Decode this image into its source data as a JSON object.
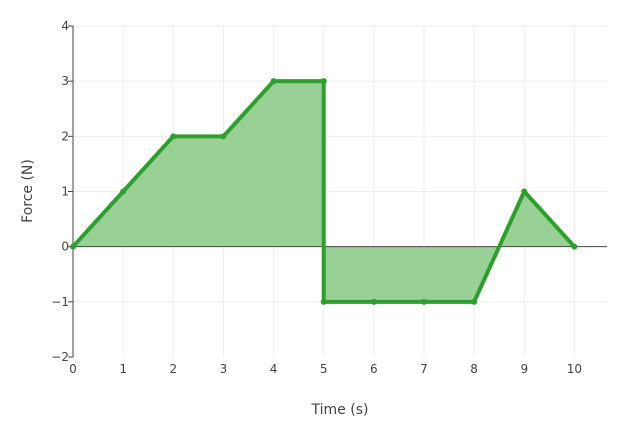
{
  "chart_data": {
    "type": "area",
    "title": "",
    "xlabel": "Time (s)",
    "ylabel": "Force (N)",
    "xlim": [
      0,
      10.65
    ],
    "ylim": [
      -2,
      4
    ],
    "x_ticks": [
      0,
      1,
      2,
      3,
      4,
      5,
      6,
      7,
      8,
      9,
      10
    ],
    "y_ticks": [
      -2,
      -1,
      0,
      1,
      2,
      3,
      4
    ],
    "y_tick_labels": [
      "−2",
      "−1",
      "0",
      "1",
      "2",
      "3",
      "4"
    ],
    "grid": true,
    "legend": "none",
    "series": [
      {
        "x": [
          0,
          1,
          2,
          3,
          4,
          5,
          5,
          6,
          7,
          8,
          9,
          10
        ],
        "y": [
          0,
          1,
          2,
          2,
          3,
          3,
          -1,
          -1,
          -1,
          -1,
          1,
          0
        ],
        "line_color": "#2ca02c",
        "fill_color": "#98d095",
        "fill": "tozeroy"
      }
    ]
  }
}
